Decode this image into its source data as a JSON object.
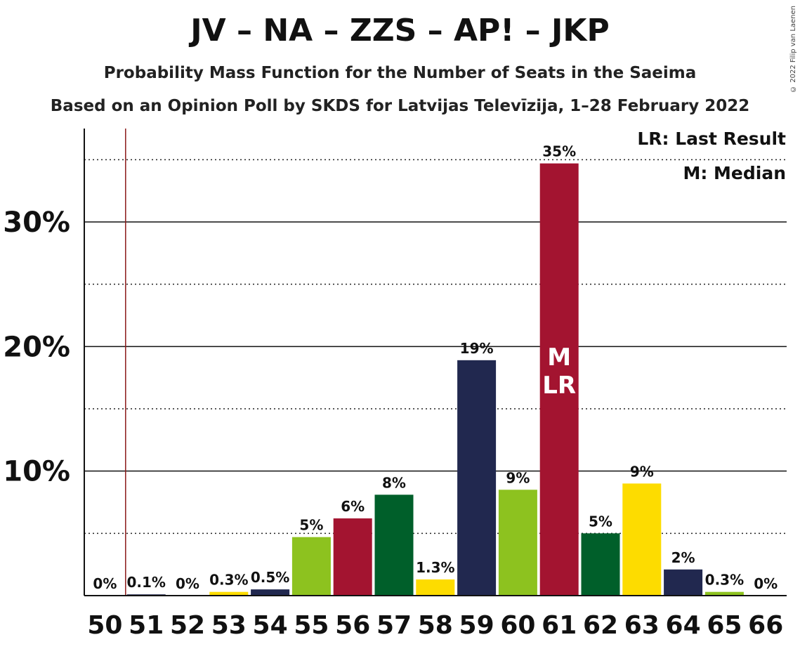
{
  "title": "JV – NA – ZZS – AP! – JKP",
  "subtitle": "Probability Mass Function for the Number of Seats in the Saeima",
  "subtitle2": "Based on an Opinion Poll by SKDS for Latvijas Televīzija, 1–28 February 2022",
  "copyright": "© 2022 Filip van Laenen",
  "legend": {
    "lr": "LR: Last Result",
    "m": "M: Median"
  },
  "chart_data": {
    "type": "bar",
    "categories": [
      "50",
      "51",
      "52",
      "53",
      "54",
      "55",
      "56",
      "57",
      "58",
      "59",
      "60",
      "61",
      "62",
      "63",
      "64",
      "65",
      "66"
    ],
    "values": [
      0,
      0.1,
      0,
      0.3,
      0.5,
      4.7,
      6.2,
      8.1,
      1.3,
      18.9,
      8.5,
      34.7,
      5.0,
      9.0,
      2.1,
      0.3,
      0
    ],
    "labels": [
      "0%",
      "0.1%",
      "0%",
      "0.3%",
      "0.5%",
      "5%",
      "6%",
      "8%",
      "1.3%",
      "19%",
      "9%",
      "35%",
      "5%",
      "9%",
      "2%",
      "0.3%",
      "0%"
    ],
    "colors": [
      "#21284f",
      "#21284f",
      "#8dc21f",
      "#fddc00",
      "#21284f",
      "#8dc21f",
      "#a31430",
      "#005f2a",
      "#fddc00",
      "#21284f",
      "#8dc21f",
      "#a31430",
      "#005f2a",
      "#fddc00",
      "#21284f",
      "#8dc21f",
      "#a31430"
    ],
    "ylim": [
      0,
      37.5
    ],
    "yticks": [
      10,
      20,
      30
    ],
    "ytick_labels": [
      "10%",
      "20%",
      "30%"
    ],
    "dotted_gridlines": [
      5,
      15,
      25,
      35
    ],
    "last_result_seat": "50.5",
    "median_seat": "61",
    "median_label": "M",
    "last_result_label": "LR"
  }
}
